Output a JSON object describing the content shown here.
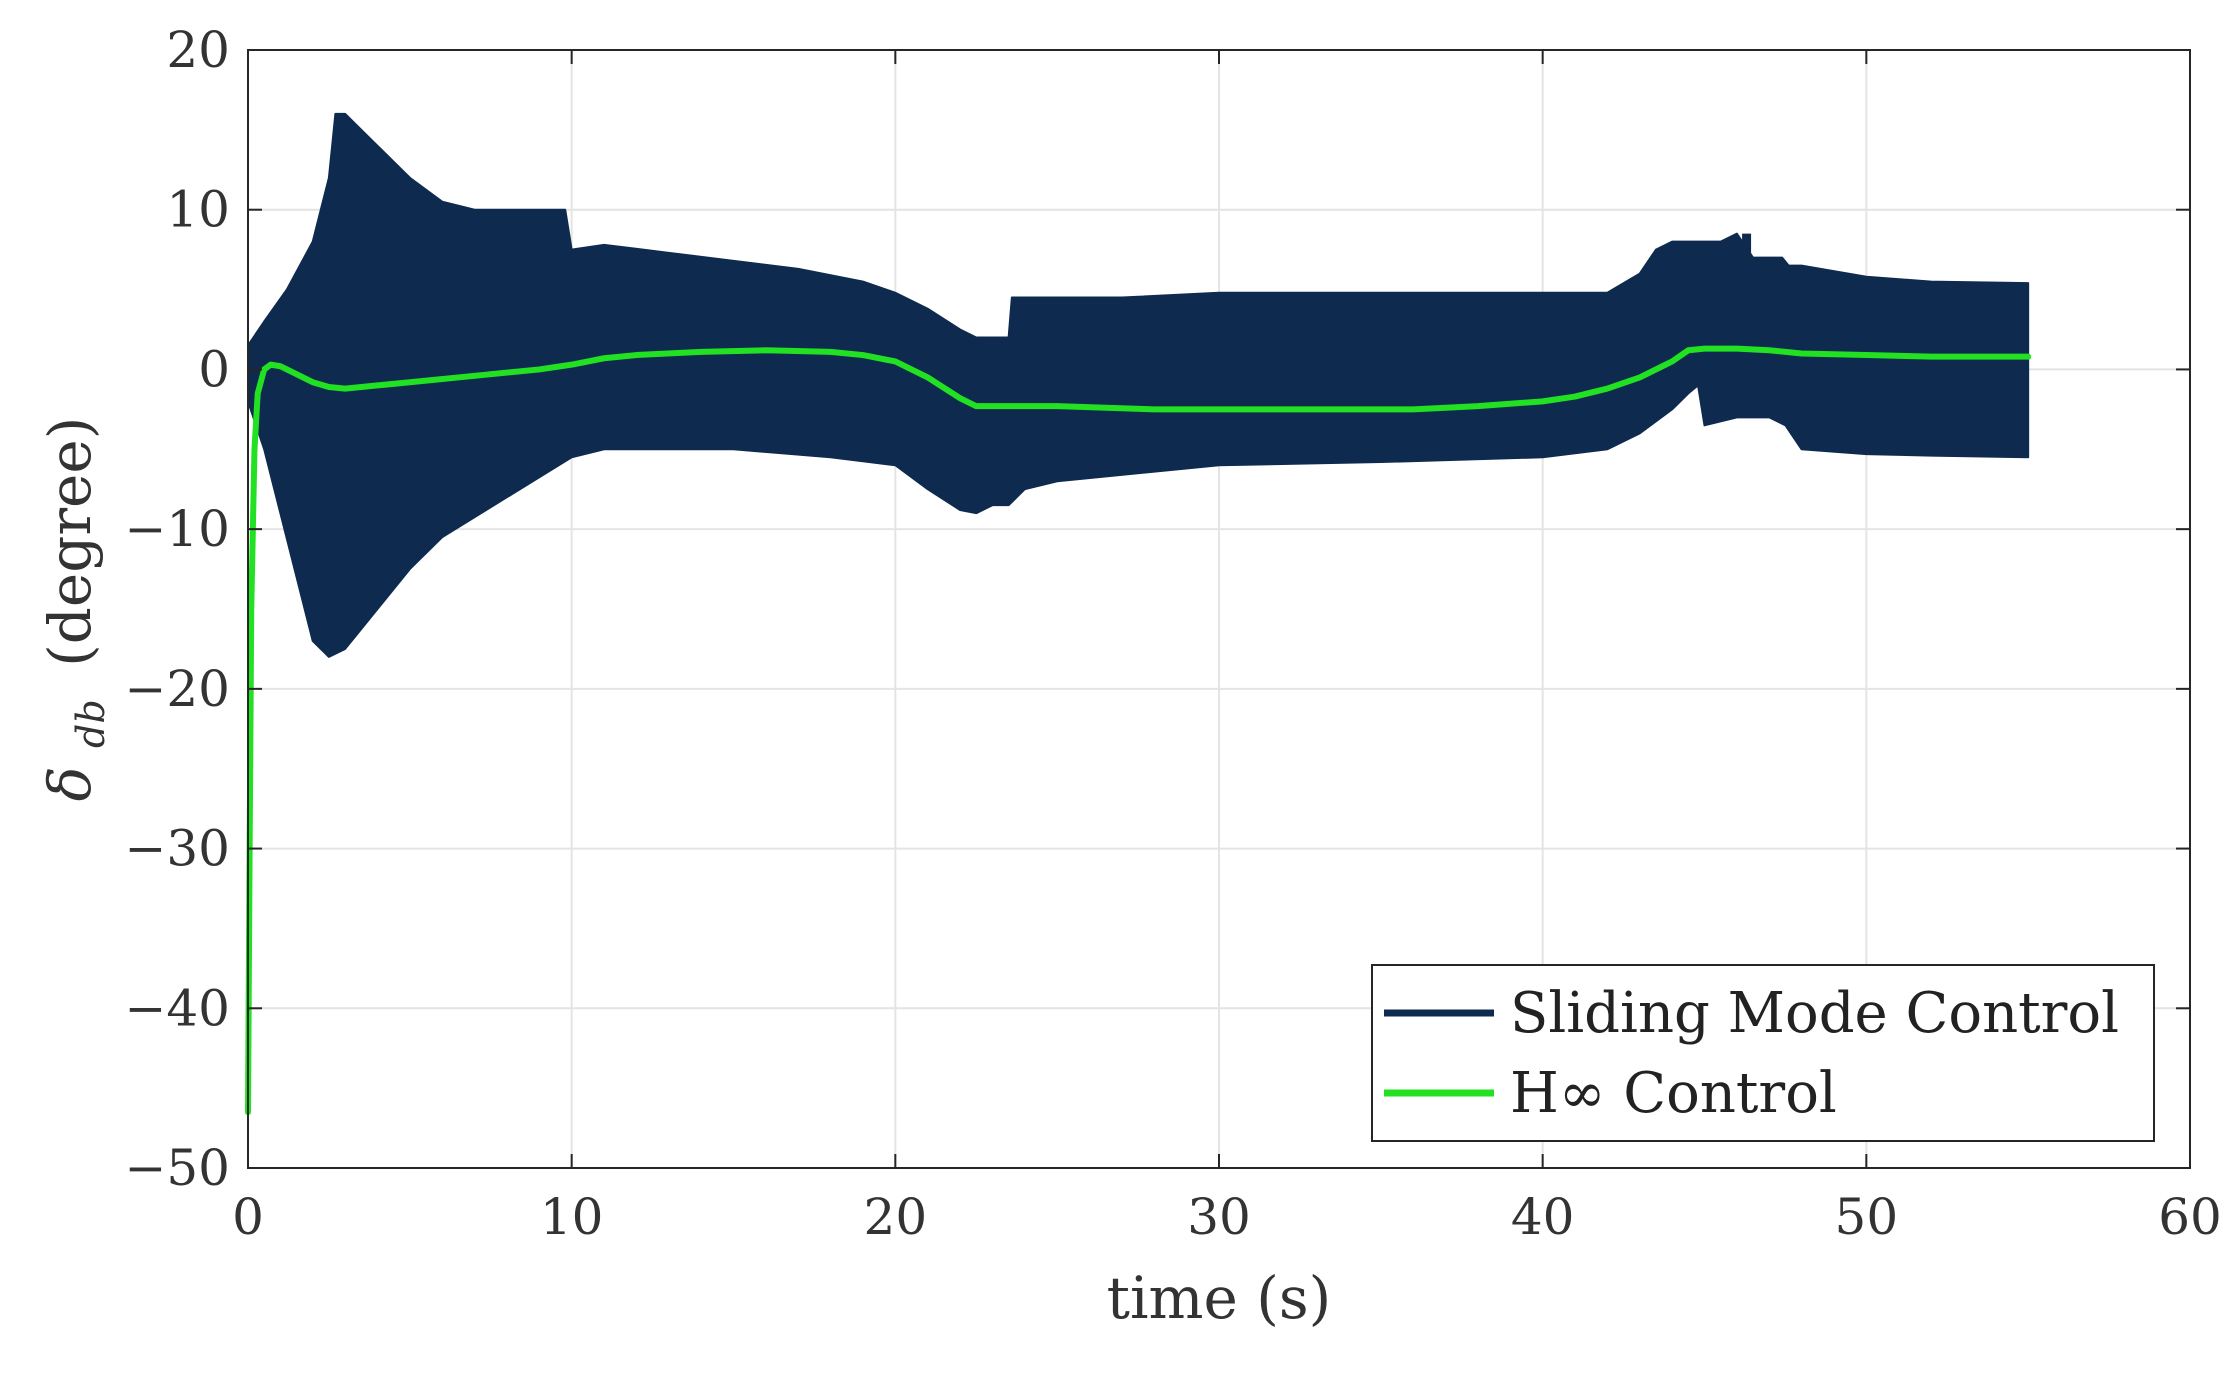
{
  "chart_data": {
    "type": "line",
    "title": "",
    "xlabel": "time (s)",
    "ylabel": {
      "symbol": "δ",
      "subscript": "db",
      "unit": "(degree)"
    },
    "xlim": [
      0,
      60
    ],
    "ylim": [
      -50,
      20
    ],
    "xticks": [
      0,
      10,
      20,
      30,
      40,
      50,
      60
    ],
    "yticks": [
      -50,
      -40,
      -30,
      -20,
      -10,
      0,
      10,
      20
    ],
    "xtick_labels": [
      "0",
      "10",
      "20",
      "30",
      "40",
      "50",
      "60"
    ],
    "ytick_labels": [
      "−50",
      "−40",
      "−30",
      "−20",
      "−10",
      "0",
      "10",
      "20"
    ],
    "grid": true,
    "legend_position": "bottom-right",
    "series": [
      {
        "name": "Sliding Mode Control",
        "color": "#0e2a4f",
        "kind": "envelope",
        "upper": {
          "x": [
            0,
            0.5,
            1.2,
            2.0,
            2.5,
            2.7,
            3.0,
            4.0,
            5.0,
            6.0,
            7.0,
            8.0,
            9.5,
            9.8,
            10.0,
            11.0,
            13.0,
            15.0,
            17.0,
            19.0,
            20.0,
            21.0,
            22.0,
            22.5,
            23.5,
            23.6,
            25.0,
            27.0,
            30.0,
            35.0,
            40.0,
            42.0,
            43.0,
            43.5,
            44.0,
            44.3,
            44.5,
            45.0,
            45.5,
            46.0,
            46.5,
            47.0,
            47.4,
            47.6,
            48.0,
            50.0,
            52.0,
            55.0
          ],
          "y": [
            1.5,
            3.0,
            5.0,
            8.0,
            12.0,
            16.0,
            16.0,
            14.0,
            12.0,
            10.5,
            10.0,
            10.0,
            10.0,
            10.0,
            7.5,
            7.8,
            7.3,
            6.8,
            6.3,
            5.5,
            4.8,
            3.8,
            2.5,
            2.0,
            2.0,
            4.5,
            4.5,
            4.5,
            4.8,
            4.8,
            4.8,
            4.8,
            6.0,
            7.5,
            8.0,
            8.0,
            8.0,
            8.0,
            8.0,
            8.5,
            7.0,
            7.0,
            7.0,
            6.5,
            6.5,
            5.8,
            5.5,
            5.4
          ]
        },
        "lower": {
          "x": [
            0,
            0.5,
            1.0,
            1.5,
            2.0,
            2.5,
            3.0,
            4.0,
            5.0,
            6.0,
            8.0,
            10.0,
            11.0,
            15.0,
            18.0,
            20.0,
            21.0,
            22.0,
            22.5,
            23.0,
            23.5,
            24.0,
            25.0,
            30.0,
            35.0,
            40.0,
            42.0,
            43.0,
            44.0,
            44.5,
            44.8,
            45.0,
            46.0,
            47.0,
            47.5,
            48.0,
            50.0,
            52.0,
            55.0
          ],
          "y": [
            -2.0,
            -5.0,
            -9.0,
            -13.0,
            -17.0,
            -18.0,
            -17.5,
            -15.0,
            -12.5,
            -10.5,
            -8.0,
            -5.5,
            -5.0,
            -5.0,
            -5.5,
            -6.0,
            -7.5,
            -8.8,
            -9.0,
            -8.5,
            -8.5,
            -7.5,
            -7.0,
            -6.0,
            -5.8,
            -5.5,
            -5.0,
            -4.0,
            -2.5,
            -1.5,
            -1.0,
            -3.5,
            -3.0,
            -3.0,
            -3.5,
            -5.0,
            -5.3,
            -5.4,
            -5.5
          ]
        },
        "spikes": [
          {
            "x": 27.2,
            "from": -0.5,
            "to": 4.5
          },
          {
            "x": 27.9,
            "from": -0.5,
            "to": 4.5
          },
          {
            "x": 31.6,
            "from": -0.5,
            "to": 4.7
          },
          {
            "x": 32.3,
            "from": -0.5,
            "to": 4.7
          },
          {
            "x": 33.3,
            "from": -0.5,
            "to": 4.7
          },
          {
            "x": 34.1,
            "from": -0.5,
            "to": 4.7
          },
          {
            "x": 34.7,
            "from": -0.5,
            "to": 4.7
          },
          {
            "x": 35.5,
            "from": -0.5,
            "to": 4.7
          },
          {
            "x": 36.2,
            "from": -0.5,
            "to": 4.7
          },
          {
            "x": 37.2,
            "from": -0.5,
            "to": 4.7
          },
          {
            "x": 38.6,
            "from": -0.5,
            "to": 4.7
          },
          {
            "x": 39.5,
            "from": -0.5,
            "to": 4.7
          },
          {
            "x": 40.3,
            "from": -0.5,
            "to": 4.7
          },
          {
            "x": 41.2,
            "from": -0.5,
            "to": 4.7
          },
          {
            "x": 42.3,
            "from": -0.5,
            "to": 5.0
          },
          {
            "x": 43.8,
            "from": 1.0,
            "to": 7.0
          },
          {
            "x": 44.3,
            "from": 1.0,
            "to": 7.5
          },
          {
            "x": 45.1,
            "from": 1.0,
            "to": 8.0
          },
          {
            "x": 45.8,
            "from": 1.0,
            "to": 8.0
          },
          {
            "x": 46.3,
            "from": 1.0,
            "to": 8.5
          }
        ]
      },
      {
        "name": "H∞ Control",
        "color": "#22e022",
        "kind": "line",
        "x": [
          0,
          0.05,
          0.1,
          0.2,
          0.3,
          0.5,
          0.7,
          1.0,
          1.5,
          2.0,
          2.5,
          3.0,
          4.0,
          5.0,
          7.0,
          9.0,
          10.0,
          11.0,
          12.0,
          14.0,
          16.0,
          18.0,
          19.0,
          20.0,
          21.0,
          22.0,
          22.5,
          23.0,
          25.0,
          28.0,
          30.0,
          33.0,
          36.0,
          38.0,
          40.0,
          41.0,
          42.0,
          43.0,
          44.0,
          44.5,
          45.0,
          46.0,
          47.0,
          48.0,
          50.0,
          52.0,
          55.0
        ],
        "y": [
          -46.5,
          -30.0,
          -15.0,
          -5.0,
          -1.5,
          0.0,
          0.3,
          0.2,
          -0.3,
          -0.8,
          -1.1,
          -1.2,
          -1.0,
          -0.8,
          -0.4,
          0.0,
          0.3,
          0.7,
          0.9,
          1.1,
          1.2,
          1.1,
          0.9,
          0.5,
          -0.5,
          -1.8,
          -2.3,
          -2.3,
          -2.3,
          -2.5,
          -2.5,
          -2.5,
          -2.5,
          -2.3,
          -2.0,
          -1.7,
          -1.2,
          -0.5,
          0.5,
          1.2,
          1.3,
          1.3,
          1.2,
          1.0,
          0.9,
          0.8,
          0.8
        ]
      }
    ]
  }
}
